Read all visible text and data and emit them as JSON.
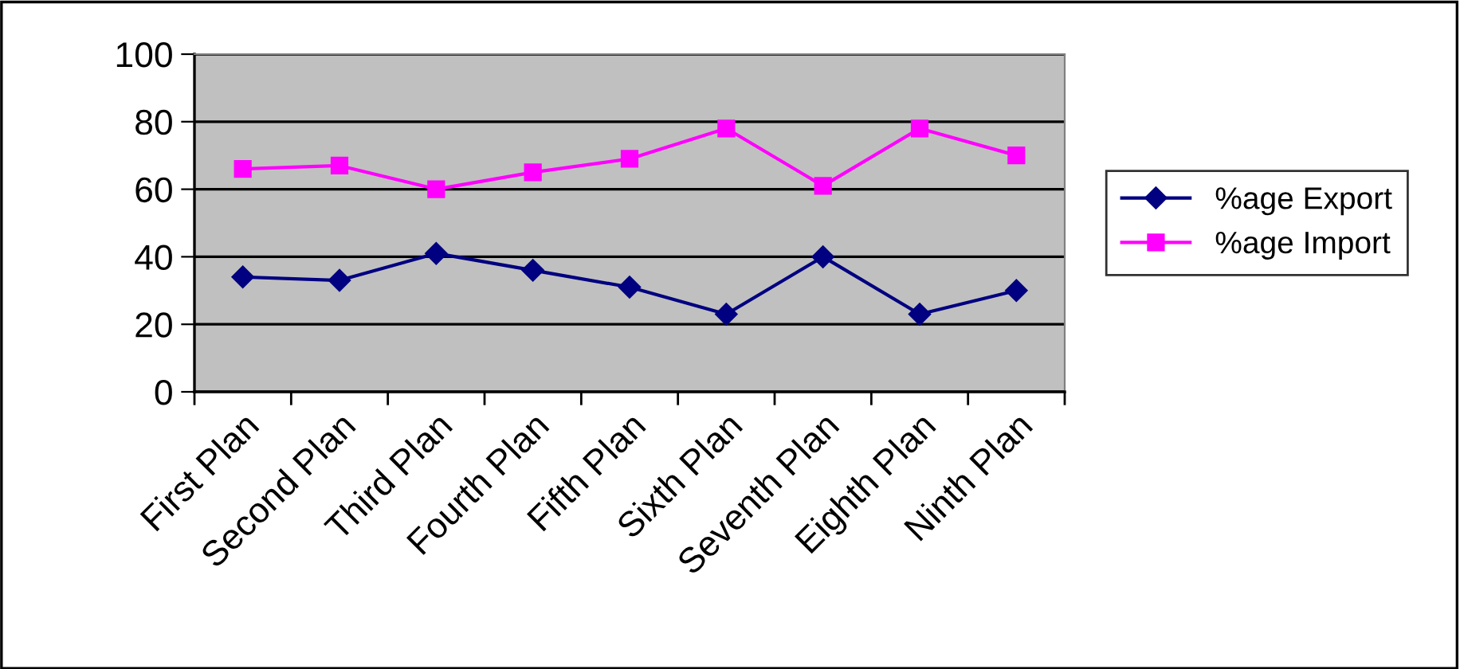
{
  "chart_data": {
    "type": "line",
    "categories": [
      "First Plan",
      "Second Plan",
      "Third Plan",
      "Fourth Plan",
      "Fifth Plan",
      "Sixth Plan",
      "Seventh Plan",
      "Eighth Plan",
      "Ninth Plan"
    ],
    "series": [
      {
        "name": "%age Export",
        "color": "#000080",
        "marker": "diamond",
        "values": [
          34,
          33,
          41,
          36,
          31,
          23,
          40,
          23,
          30
        ]
      },
      {
        "name": "%age Import",
        "color": "#ff00ff",
        "marker": "square",
        "values": [
          66,
          67,
          60,
          65,
          69,
          78,
          61,
          78,
          70
        ]
      }
    ],
    "ylim": [
      0,
      100
    ],
    "yticks": [
      0,
      20,
      40,
      60,
      80,
      100
    ],
    "grid": "y",
    "legend": "right",
    "line_style": "solid"
  }
}
